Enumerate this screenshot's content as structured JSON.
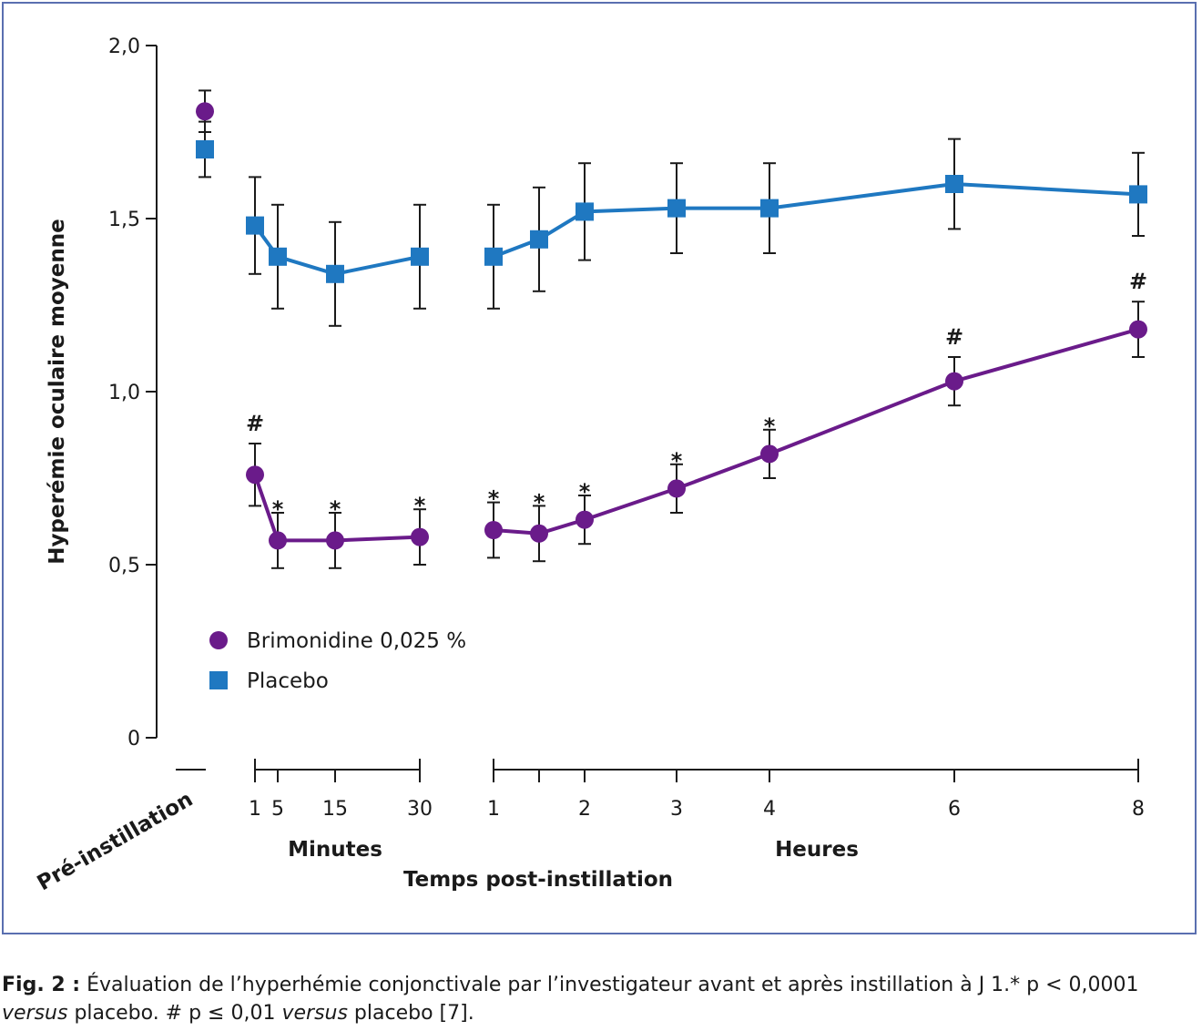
{
  "colors": {
    "brimonidine": "#6a1b8a",
    "placebo": "#1f78c1",
    "axis": "#1a1a1a",
    "frame": "#5a6fb0"
  },
  "chart_data": {
    "type": "line",
    "ylabel": "Hyperémie oculaire moyenne",
    "xlabel": "Temps post-instillation",
    "ylim": [
      0,
      2.0
    ],
    "yticks": [
      "0",
      "0,5",
      "1,0",
      "1,5",
      "2,0"
    ],
    "yticks_values": [
      0,
      0.5,
      1.0,
      1.5,
      2.0
    ],
    "grid": false,
    "legend_position": "bottom-left inside plot",
    "pre_label": "Pré-instillation",
    "x_groups": [
      {
        "label": "Minutes",
        "ticks": [
          "1",
          "5",
          "15",
          "30"
        ]
      },
      {
        "label": "Heures",
        "ticks": [
          "1",
          "2",
          "3",
          "4",
          "6",
          "8"
        ]
      }
    ],
    "x": [
      "Pré-instillation",
      "1 min",
      "5 min",
      "15 min",
      "30 min",
      "1 h",
      "1,5 h",
      "2 h",
      "3 h",
      "4 h",
      "6 h",
      "8 h"
    ],
    "series": [
      {
        "name": "Brimonidine 0,025 %",
        "marker": "circle",
        "values": [
          1.81,
          0.76,
          0.57,
          0.57,
          0.58,
          0.6,
          0.59,
          0.63,
          0.72,
          0.82,
          1.03,
          1.18
        ],
        "err": [
          0.06,
          0.09,
          0.08,
          0.08,
          0.08,
          0.08,
          0.08,
          0.07,
          0.07,
          0.07,
          0.07,
          0.08
        ],
        "significance": [
          "",
          "#",
          "*",
          "*",
          "*",
          "*",
          "*",
          "*",
          "*",
          "*",
          "#",
          "#"
        ]
      },
      {
        "name": "Placebo",
        "marker": "square",
        "values": [
          1.7,
          1.48,
          1.39,
          1.34,
          1.39,
          1.39,
          1.44,
          1.52,
          1.53,
          1.53,
          1.6,
          1.57
        ],
        "err": [
          0.08,
          0.14,
          0.15,
          0.15,
          0.15,
          0.15,
          0.15,
          0.14,
          0.13,
          0.13,
          0.13,
          0.12
        ],
        "significance": [
          "",
          "",
          "",
          "",
          "",
          "",
          "",
          "",
          "",
          "",
          "",
          ""
        ]
      }
    ]
  },
  "caption": {
    "label": "Fig. 2 :",
    "line1": " Évaluation de l’hyperhémie conjonctivale par l’investigateur avant et après instillation à J 1.* p < 0,0001",
    "versus1": "versus",
    "mid": " placebo. # p ≤ 0,01 ",
    "versus2": "versus",
    "tail": " placebo [7]."
  }
}
